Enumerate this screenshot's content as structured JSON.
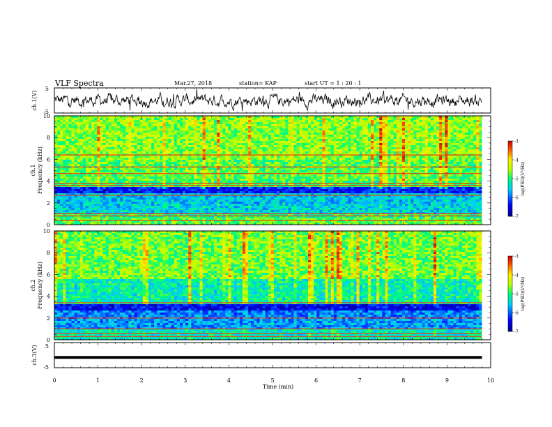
{
  "header": {
    "title": "VLF Spectra",
    "date": "Mar.27, 2018",
    "station": "station= KAP",
    "start": "start  UT =   1 : 20 : 1"
  },
  "chart_data": [
    {
      "type": "line",
      "name": "ch1-waveform",
      "ylabel": "ch.1(V)",
      "ylim": [
        -5,
        5
      ],
      "yticks": [
        "5",
        "-5"
      ],
      "xlim": [
        0,
        10
      ],
      "x_span": [
        0,
        9.8
      ],
      "baseline": 0,
      "amplitude": 1.5
    },
    {
      "type": "heatmap",
      "name": "ch1-spectrogram",
      "ylabel": "ch.1\nFrequency (kHz)",
      "ylim": [
        0,
        10
      ],
      "yticks": [
        "0",
        "2",
        "4",
        "6",
        "8",
        "10"
      ],
      "xlim": [
        0,
        10
      ],
      "x_span": [
        0,
        9.8
      ],
      "colorbar": {
        "label": "log(PSD)(V²/Hz)",
        "range": [
          -7,
          -3
        ],
        "ticks": [
          "-3",
          "-4",
          "-5",
          "-6",
          "-7"
        ]
      },
      "bands": [
        {
          "from": 0,
          "to": 0.5,
          "level": -4.8
        },
        {
          "from": 0.5,
          "to": 1.0,
          "level": -5.0
        },
        {
          "from": 1.0,
          "to": 2.0,
          "level": -5.5
        },
        {
          "from": 2.0,
          "to": 2.8,
          "level": -5.6
        },
        {
          "from": 2.8,
          "to": 3.4,
          "level": -6.4
        },
        {
          "from": 3.4,
          "to": 4.0,
          "level": -5.0
        },
        {
          "from": 4.0,
          "to": 6.0,
          "level": -4.9
        },
        {
          "from": 6.0,
          "to": 10,
          "level": -4.7
        }
      ],
      "lines_khz": [
        0.4,
        0.8,
        1.0,
        2.7,
        3.6,
        3.8,
        4.7,
        5.3,
        6.4
      ]
    },
    {
      "type": "heatmap",
      "name": "ch2-spectrogram",
      "ylabel": "ch.2\nFrequency (kHz)",
      "ylim": [
        0,
        10
      ],
      "yticks": [
        "0",
        "2",
        "4",
        "6",
        "8",
        "10"
      ],
      "xlim": [
        0,
        10
      ],
      "x_span": [
        0,
        9.8
      ],
      "colorbar": {
        "label": "log(PSD)(V²/Hz)",
        "range": [
          -7,
          -3
        ],
        "ticks": [
          "-3",
          "-4",
          "-5",
          "-6",
          "-7"
        ]
      },
      "bands": [
        {
          "from": 0,
          "to": 1.0,
          "level": -5.3
        },
        {
          "from": 1.0,
          "to": 2.0,
          "level": -5.8
        },
        {
          "from": 2.0,
          "to": 2.6,
          "level": -5.9
        },
        {
          "from": 2.6,
          "to": 3.3,
          "level": -6.5
        },
        {
          "from": 3.3,
          "to": 5.5,
          "level": -5.3
        },
        {
          "from": 5.5,
          "to": 10,
          "level": -4.8
        }
      ],
      "lines_khz": [
        0.3,
        0.6,
        1.0,
        2.0,
        3.4
      ]
    },
    {
      "type": "line",
      "name": "ch3-waveform",
      "ylabel": "ch.3(V)",
      "ylim": [
        -5,
        5
      ],
      "yticks": [
        "5",
        "-5"
      ],
      "xlim": [
        0,
        10
      ],
      "x_span": [
        0,
        9.8
      ],
      "baseline": -0.9,
      "amplitude": 0.0
    }
  ],
  "xaxis": {
    "label": "Time (min)",
    "ticks": [
      "0",
      "1",
      "2",
      "3",
      "4",
      "5",
      "6",
      "7",
      "8",
      "9",
      "10"
    ],
    "range": [
      0,
      10
    ]
  }
}
